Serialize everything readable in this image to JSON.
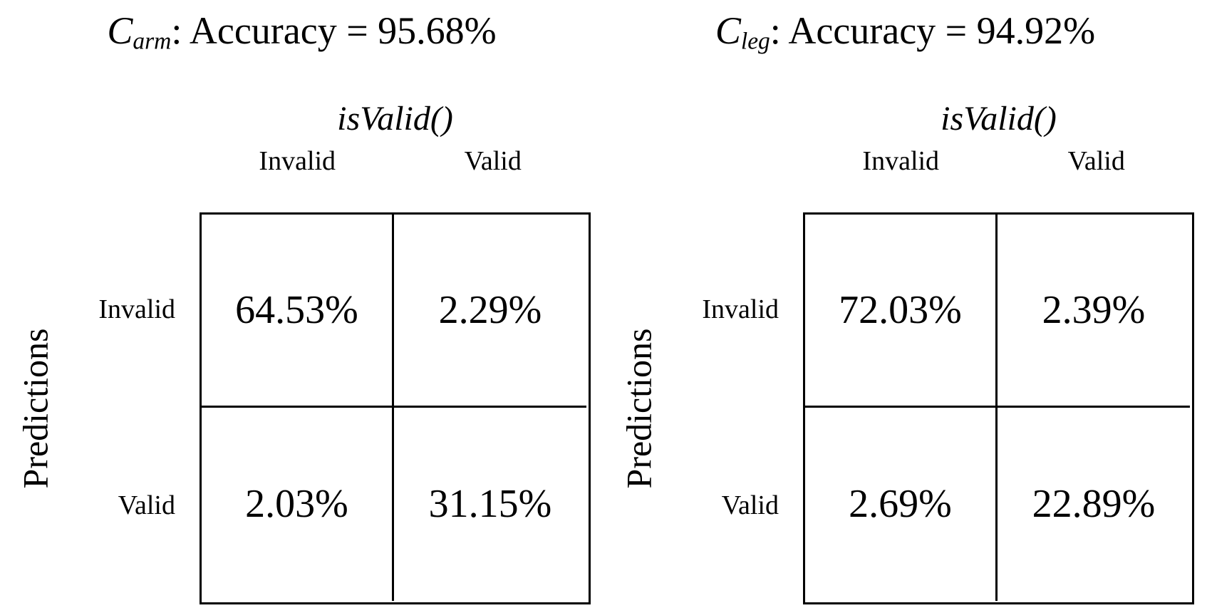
{
  "figure": {
    "panels": [
      {
        "name": "arm",
        "title": {
          "symbol": "C",
          "subscript": "arm",
          "rest": ": Accuracy = 95.68%"
        },
        "top_axis_label": "isValid()",
        "left_axis_label": "Predictions",
        "col_headers": [
          "Invalid",
          "Valid"
        ],
        "row_headers": [
          "Invalid",
          "Valid"
        ],
        "cells": [
          [
            "64.53%",
            "2.29%"
          ],
          [
            "2.03%",
            "31.15%"
          ]
        ]
      },
      {
        "name": "leg",
        "title": {
          "symbol": "C",
          "subscript": "leg",
          "rest": ": Accuracy = 94.92%"
        },
        "top_axis_label": "isValid()",
        "left_axis_label": "Predictions",
        "col_headers": [
          "Invalid",
          "Valid"
        ],
        "row_headers": [
          "Invalid",
          "Valid"
        ],
        "cells": [
          [
            "72.03%",
            "2.39%"
          ],
          [
            "2.69%",
            "22.89%"
          ]
        ]
      }
    ],
    "text_color": "#000000",
    "background_color": "#ffffff"
  },
  "chart_data": [
    {
      "type": "table",
      "title": "C_arm: Accuracy = 95.68%",
      "accuracy_percent": 95.68,
      "xlabel": "isValid()",
      "ylabel": "Predictions",
      "categories": [
        "Invalid",
        "Valid"
      ],
      "rows": [
        "Invalid",
        "Valid"
      ],
      "values": [
        [
          64.53,
          2.29
        ],
        [
          2.03,
          31.15
        ]
      ],
      "unit": "%",
      "legend_position": "none",
      "grid": true
    },
    {
      "type": "table",
      "title": "C_leg: Accuracy = 94.92%",
      "accuracy_percent": 94.92,
      "xlabel": "isValid()",
      "ylabel": "Predictions",
      "categories": [
        "Invalid",
        "Valid"
      ],
      "rows": [
        "Invalid",
        "Valid"
      ],
      "values": [
        [
          72.03,
          2.39
        ],
        [
          2.69,
          22.89
        ]
      ],
      "unit": "%",
      "legend_position": "none",
      "grid": true
    }
  ]
}
